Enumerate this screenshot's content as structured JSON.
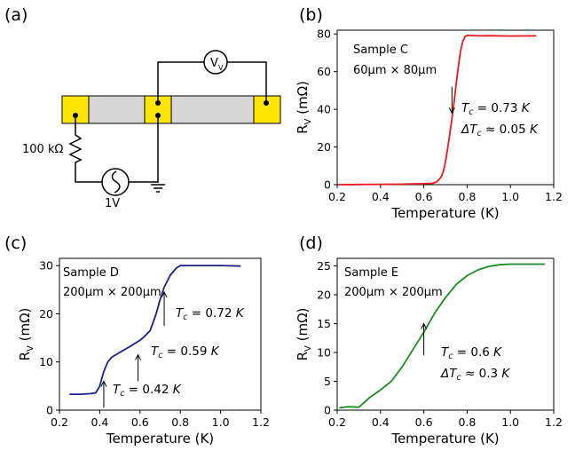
{
  "panels": {
    "a": {
      "label": "(a)",
      "resistor": "100 kΩ",
      "source": "1V",
      "meter": "V",
      "meter_sub": "V"
    },
    "b": {
      "label": "(b)"
    },
    "c": {
      "label": "(c)"
    },
    "d": {
      "label": "(d)"
    }
  },
  "chart_data": [
    {
      "panel": "(b)",
      "type": "line",
      "xlabel": "Temperature (K)",
      "ylabel_main": "R",
      "ylabel_sub": "V",
      "ylabel_unit": " (mΩ)",
      "xlim": [
        0.2,
        1.2
      ],
      "ylim": [
        0,
        82
      ],
      "xticks": [
        0.2,
        0.4,
        0.6,
        0.8,
        1.0,
        1.2
      ],
      "xtick_labels": [
        "0.2",
        "0.4",
        "0.6",
        "0.8",
        "1.0",
        "1.2"
      ],
      "yticks": [
        0,
        20,
        40,
        60,
        80
      ],
      "ytick_labels": [
        "0",
        "20",
        "40",
        "60",
        "80"
      ],
      "color": "#e8191f",
      "annotation_lines": [
        "Sample C",
        "60μm × 80μm"
      ],
      "tc_texts": [
        {
          "pre": "T",
          "sub": "c",
          "post": " = 0.73 ",
          "unit": "K"
        },
        {
          "pre": "ΔT",
          "sub": "c",
          "post": " ≈ 0.05 ",
          "unit": "K"
        }
      ],
      "arrows": [
        {
          "x": 0.73,
          "y_from": 52,
          "y_to": 38,
          "dir": "down"
        }
      ],
      "series": [
        {
          "x": [
            0.21,
            0.3,
            0.4,
            0.5,
            0.6,
            0.64,
            0.66,
            0.68,
            0.69,
            0.7,
            0.71,
            0.72,
            0.73,
            0.74,
            0.75,
            0.76,
            0.77,
            0.78,
            0.79,
            0.8,
            0.85,
            0.9,
            1.0,
            1.1,
            1.12
          ],
          "y": [
            0,
            0.1,
            0.2,
            0.3,
            0.5,
            0.7,
            1.5,
            4,
            7,
            12,
            19,
            27,
            35,
            44,
            54,
            63,
            71,
            76,
            78.5,
            79.2,
            79.0,
            79.1,
            78.9,
            79.0,
            79.0
          ]
        }
      ]
    },
    {
      "panel": "(c)",
      "type": "line",
      "xlabel": "Temperature (K)",
      "ylabel_main": "R",
      "ylabel_sub": "V",
      "ylabel_unit": " (mΩ)",
      "xlim": [
        0.2,
        1.2
      ],
      "ylim": [
        0,
        31.5
      ],
      "xticks": [
        0.2,
        0.4,
        0.6,
        0.8,
        1.0,
        1.2
      ],
      "xtick_labels": [
        "0.2",
        "0.4",
        "0.6",
        "0.8",
        "1.0",
        "1.2"
      ],
      "yticks": [
        0,
        10,
        20,
        30
      ],
      "ytick_labels": [
        "0",
        "10",
        "20",
        "30"
      ],
      "color": "#1a1f85",
      "annotation_lines": [
        "Sample D",
        "200μm × 200μm"
      ],
      "tc_texts": [
        {
          "pre": "T",
          "sub": "c",
          "post": " = 0.72 ",
          "unit": "K"
        },
        {
          "pre": "T",
          "sub": "c",
          "post": " = 0.59 ",
          "unit": "K"
        },
        {
          "pre": "T",
          "sub": "c",
          "post": " = 0.42 ",
          "unit": "K"
        }
      ],
      "arrows": [
        {
          "x": 0.72,
          "y_from": 17.5,
          "y_to": 24.5,
          "dir": "up"
        },
        {
          "x": 0.59,
          "y_from": 6,
          "y_to": 11.5,
          "dir": "up"
        },
        {
          "x": 0.42,
          "y_from": 0.5,
          "y_to": 6,
          "dir": "up"
        }
      ],
      "series": [
        {
          "x": [
            0.25,
            0.3,
            0.35,
            0.38,
            0.4,
            0.42,
            0.44,
            0.46,
            0.5,
            0.55,
            0.58,
            0.6,
            0.62,
            0.65,
            0.68,
            0.7,
            0.72,
            0.75,
            0.78,
            0.8,
            0.85,
            0.9,
            1.0,
            1.1
          ],
          "y": [
            3.3,
            3.3,
            3.4,
            3.6,
            5,
            8,
            10,
            11,
            12,
            13.2,
            14,
            14.5,
            15.2,
            16.5,
            20,
            23,
            25.5,
            28,
            29.5,
            30,
            30,
            30,
            30,
            29.9
          ]
        }
      ]
    },
    {
      "panel": "(d)",
      "type": "line",
      "xlabel": "Temperature (K)",
      "ylabel_main": "R",
      "ylabel_sub": "V",
      "ylabel_unit": " (mΩ)",
      "xlim": [
        0.2,
        1.2
      ],
      "ylim": [
        0,
        26.3
      ],
      "xticks": [
        0.2,
        0.4,
        0.6,
        0.8,
        1.0,
        1.2
      ],
      "xtick_labels": [
        "0.2",
        "0.4",
        "0.6",
        "0.8",
        "1.0",
        "1.2"
      ],
      "yticks": [
        0,
        5,
        10,
        15,
        20,
        25
      ],
      "ytick_labels": [
        "0",
        "5",
        "10",
        "15",
        "20",
        "25"
      ],
      "color": "#1e8a23",
      "annotation_lines": [
        "Sample E",
        "200μm × 200μm"
      ],
      "tc_texts": [
        {
          "pre": "T",
          "sub": "c",
          "post": " = 0.6 ",
          "unit": "K"
        },
        {
          "pre": "ΔT",
          "sub": "c",
          "post": " ≈ 0.3 ",
          "unit": "K"
        }
      ],
      "arrows": [
        {
          "x": 0.6,
          "y_from": 9.5,
          "y_to": 15,
          "dir": "up"
        }
      ],
      "series": [
        {
          "x": [
            0.21,
            0.25,
            0.3,
            0.33,
            0.35,
            0.4,
            0.45,
            0.5,
            0.55,
            0.6,
            0.65,
            0.7,
            0.75,
            0.8,
            0.85,
            0.9,
            0.95,
            1.0,
            1.05,
            1.1,
            1.16
          ],
          "y": [
            0.4,
            0.6,
            0.5,
            1.5,
            2.2,
            3.5,
            5,
            7.5,
            10.5,
            13.5,
            16.8,
            19.5,
            21.8,
            23.3,
            24.3,
            24.9,
            25.2,
            25.3,
            25.3,
            25.3,
            25.3
          ]
        }
      ]
    }
  ]
}
